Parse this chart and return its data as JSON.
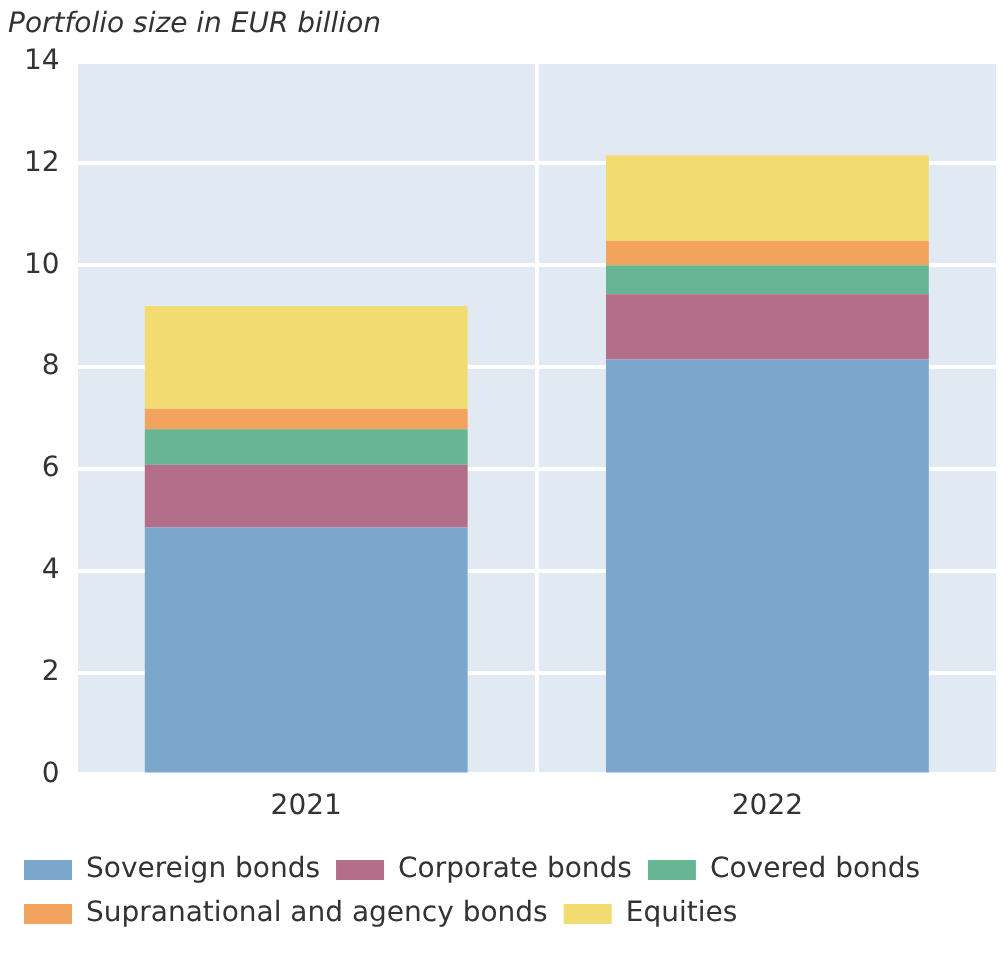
{
  "chart_data": {
    "type": "bar",
    "stacked": true,
    "ylabel": "Portfolio size in EUR billion",
    "categories": [
      "2021",
      "2022"
    ],
    "series": [
      {
        "name": "Sovereign bonds",
        "color": "#7ba7cc",
        "values": [
          4.85,
          8.15
        ]
      },
      {
        "name": "Corporate bonds",
        "color": "#b36e8a",
        "values": [
          1.23,
          1.28
        ]
      },
      {
        "name": "Covered bonds",
        "color": "#67b593",
        "values": [
          0.7,
          0.57
        ]
      },
      {
        "name": "Supranational and agency bonds",
        "color": "#f2a35e",
        "values": [
          0.4,
          0.48
        ]
      },
      {
        "name": "Equities",
        "color": "#f2dc72",
        "values": [
          2.02,
          1.68
        ]
      }
    ],
    "ylim": [
      0,
      14
    ],
    "yticks": [
      0,
      2,
      4,
      6,
      8,
      10,
      12,
      14
    ],
    "grid": true,
    "legend": "bottom"
  }
}
